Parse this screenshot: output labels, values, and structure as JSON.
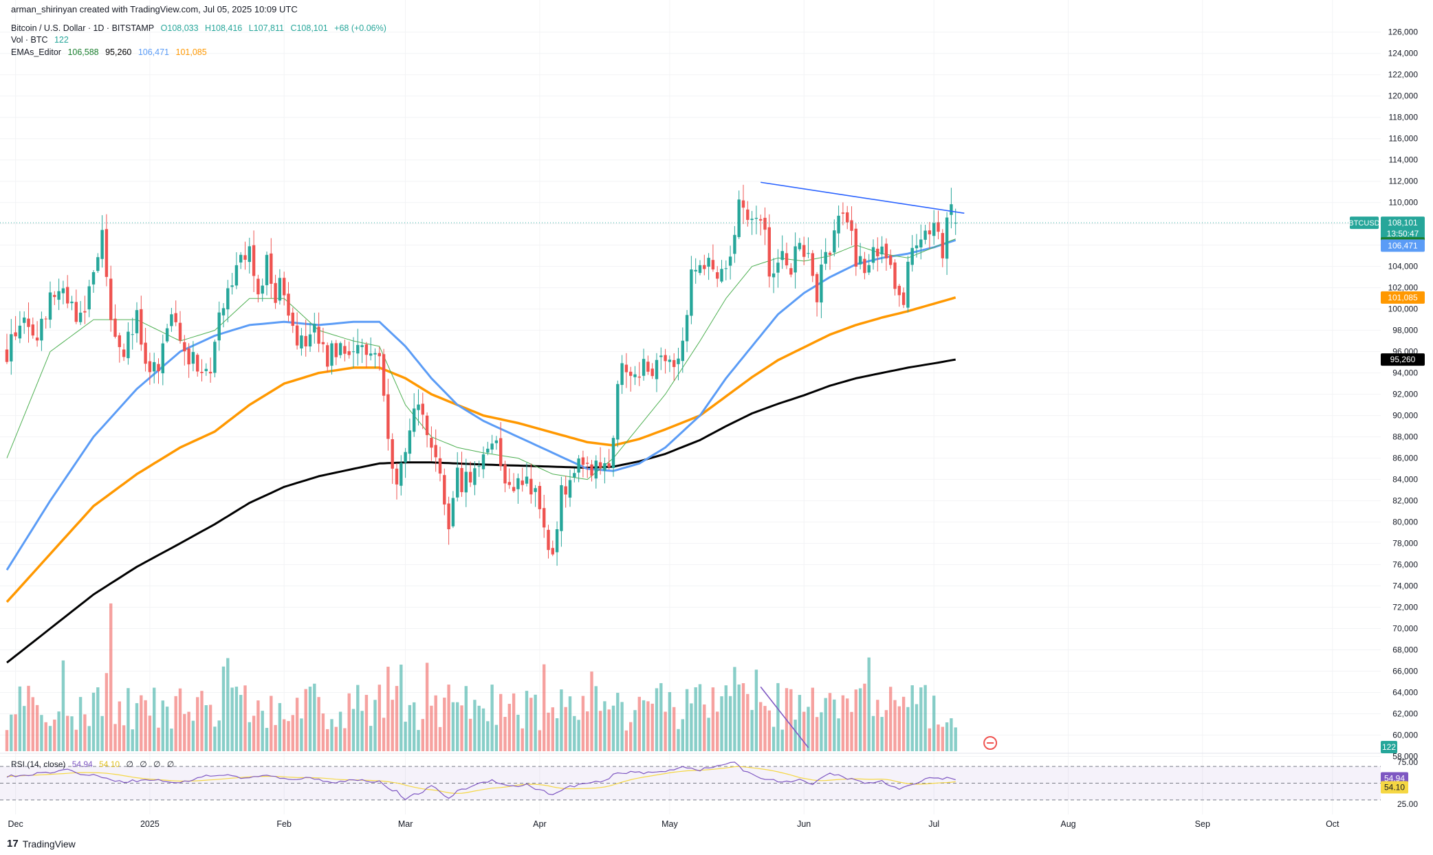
{
  "header": {
    "author_line": "arman_shirinyan created with TradingView.com, Jul 05, 2025 10:09 UTC",
    "symbol_name": "Bitcoin / U.S. Dollar · 1D · BITSTAMP",
    "ohlc": {
      "open": "O108,033",
      "high": "H108,416",
      "low": "L107,811",
      "close": "C108,101",
      "change": "+68 (+0.06%)"
    },
    "vol_label": "Vol · BTC",
    "vol_value": "122",
    "ema_label": "EMAs_Editor",
    "ema_values": [
      "106,588",
      "95,260",
      "106,471",
      "101,085"
    ]
  },
  "rsi_legend": {
    "label": "RSI (14, close)",
    "value": "54.94",
    "ma_value": "54.10",
    "extras": [
      "∅",
      "∅",
      "∅",
      "∅"
    ]
  },
  "brand": {
    "name": "TradingView",
    "logo_glyph": "17"
  },
  "colors": {
    "up": "#26a69a",
    "down": "#ef5350",
    "ema20": "#4caf50",
    "ema50": "#5b9cf6",
    "ema100": "#ff9800",
    "ema200": "#000000",
    "trendline": "#2962ff",
    "rsi": "#7e57c2",
    "rsi_ma": "#f5d743",
    "price_tag": "#26a69a"
  },
  "chart_data": {
    "type": "candlestick",
    "symbol": "BTCUSD",
    "interval": "1D",
    "ylim": [
      59000,
      126500
    ],
    "y_ticks": [
      "126,000",
      "124,000",
      "122,000",
      "120,000",
      "118,000",
      "116,000",
      "114,000",
      "112,000",
      "110,000",
      "108,000",
      "106,000",
      "104,000",
      "102,000",
      "100,000",
      "98,000",
      "96,000",
      "94,000",
      "92,000",
      "90,000",
      "88,000",
      "86,000",
      "84,000",
      "82,000",
      "80,000",
      "78,000",
      "76,000",
      "74,000",
      "72,000",
      "70,000",
      "68,000",
      "66,000",
      "64,000",
      "62,000",
      "60,000",
      "58,000"
    ],
    "x_ticks": [
      {
        "label": "Dec",
        "day": 2
      },
      {
        "label": "2025",
        "day": 33
      },
      {
        "label": "Feb",
        "day": 64
      },
      {
        "label": "Mar",
        "day": 92
      },
      {
        "label": "Apr",
        "day": 123
      },
      {
        "label": "May",
        "day": 153
      },
      {
        "label": "Jun",
        "day": 184
      },
      {
        "label": "Jul",
        "day": 214
      },
      {
        "label": "Aug",
        "day": 245
      },
      {
        "label": "Sep",
        "day": 276
      },
      {
        "label": "Oct",
        "day": 306
      }
    ],
    "price_tags": [
      {
        "label": "BTCUSD",
        "value": "108,101",
        "sub": "13:50:47",
        "price": 108101,
        "color": "#26a69a"
      },
      {
        "value": "106,588",
        "price": 106588,
        "color": "#1b7f2e"
      },
      {
        "value": "106,471",
        "price": 106471,
        "color": "#5b9cf6"
      },
      {
        "value": "101,085",
        "price": 101085,
        "color": "#ff9800"
      },
      {
        "value": "95,260",
        "price": 95260,
        "color": "#000000"
      }
    ],
    "volume_tag": "122",
    "anchors": [
      [
        0,
        96000
      ],
      [
        3,
        99000
      ],
      [
        6,
        96500
      ],
      [
        9,
        100000
      ],
      [
        12,
        101500
      ],
      [
        15,
        100000
      ],
      [
        18,
        99000
      ],
      [
        20,
        104000
      ],
      [
        22,
        106500
      ],
      [
        24,
        98000
      ],
      [
        27,
        96500
      ],
      [
        30,
        99000
      ],
      [
        32,
        94000
      ],
      [
        35,
        94000
      ],
      [
        38,
        99500
      ],
      [
        41,
        97000
      ],
      [
        44,
        93800
      ],
      [
        47,
        95000
      ],
      [
        50,
        101000
      ],
      [
        53,
        104500
      ],
      [
        56,
        105000
      ],
      [
        58,
        101000
      ],
      [
        60,
        104000
      ],
      [
        62,
        101500
      ],
      [
        64,
        102000
      ],
      [
        66,
        99000
      ],
      [
        68,
        96500
      ],
      [
        71,
        97500
      ],
      [
        74,
        95000
      ],
      [
        77,
        97000
      ],
      [
        80,
        96500
      ],
      [
        84,
        96000
      ],
      [
        86,
        96000
      ],
      [
        87,
        91500
      ],
      [
        88,
        89000
      ],
      [
        89,
        86000
      ],
      [
        90,
        84500
      ],
      [
        92,
        85500
      ],
      [
        95,
        92000
      ],
      [
        97,
        87000
      ],
      [
        100,
        84000
      ],
      [
        102,
        80000
      ],
      [
        104,
        84000
      ],
      [
        107,
        84000
      ],
      [
        110,
        87000
      ],
      [
        113,
        87500
      ],
      [
        116,
        83000
      ],
      [
        119,
        84000
      ],
      [
        122,
        83500
      ],
      [
        124,
        78500
      ],
      [
        126,
        76500
      ],
      [
        128,
        82500
      ],
      [
        131,
        85000
      ],
      [
        134,
        84500
      ],
      [
        137,
        85000
      ],
      [
        140,
        87000
      ],
      [
        141,
        93000
      ],
      [
        143,
        94500
      ],
      [
        146,
        94500
      ],
      [
        149,
        94500
      ],
      [
        151,
        96500
      ],
      [
        153,
        95000
      ],
      [
        156,
        97000
      ],
      [
        158,
        103500
      ],
      [
        161,
        104500
      ],
      [
        163,
        104000
      ],
      [
        165,
        103500
      ],
      [
        167,
        104000
      ],
      [
        168,
        106500
      ],
      [
        169,
        110500
      ],
      [
        172,
        109000
      ],
      [
        174,
        107500
      ],
      [
        175,
        106500
      ],
      [
        176,
        104000
      ],
      [
        178,
        105000
      ],
      [
        181,
        103800
      ],
      [
        182,
        105800
      ],
      [
        184,
        105500
      ],
      [
        186,
        103500
      ],
      [
        187,
        101500
      ],
      [
        188,
        104500
      ],
      [
        190,
        105500
      ],
      [
        192,
        109000
      ],
      [
        194,
        108000
      ],
      [
        196,
        105000
      ],
      [
        198,
        104000
      ],
      [
        200,
        104800
      ],
      [
        202,
        105000
      ],
      [
        204,
        104000
      ],
      [
        206,
        100500
      ],
      [
        207,
        101000
      ],
      [
        208,
        105500
      ],
      [
        210,
        106500
      ],
      [
        212,
        107000
      ],
      [
        214,
        107300
      ],
      [
        216,
        105800
      ],
      [
        217,
        108800
      ],
      [
        218,
        109000
      ],
      [
        219,
        108101
      ]
    ],
    "ema20": [
      [
        0,
        86000
      ],
      [
        10,
        96000
      ],
      [
        20,
        99000
      ],
      [
        30,
        99000
      ],
      [
        40,
        97000
      ],
      [
        48,
        98000
      ],
      [
        56,
        101000
      ],
      [
        64,
        101000
      ],
      [
        72,
        98000
      ],
      [
        80,
        97000
      ],
      [
        86,
        96500
      ],
      [
        92,
        91000
      ],
      [
        98,
        88000
      ],
      [
        104,
        87000
      ],
      [
        110,
        86500
      ],
      [
        118,
        86000
      ],
      [
        126,
        84500
      ],
      [
        134,
        84000
      ],
      [
        140,
        86000
      ],
      [
        146,
        89000
      ],
      [
        152,
        92000
      ],
      [
        160,
        97000
      ],
      [
        166,
        101000
      ],
      [
        172,
        104000
      ],
      [
        178,
        104800
      ],
      [
        184,
        104500
      ],
      [
        190,
        105000
      ],
      [
        196,
        106000
      ],
      [
        202,
        105200
      ],
      [
        208,
        104800
      ],
      [
        214,
        105800
      ],
      [
        219,
        106588
      ]
    ],
    "ema50": [
      [
        0,
        75500
      ],
      [
        10,
        82000
      ],
      [
        20,
        88000
      ],
      [
        30,
        92500
      ],
      [
        40,
        96000
      ],
      [
        48,
        97500
      ],
      [
        56,
        98500
      ],
      [
        64,
        98800
      ],
      [
        72,
        98500
      ],
      [
        80,
        98800
      ],
      [
        86,
        98800
      ],
      [
        92,
        96500
      ],
      [
        98,
        93500
      ],
      [
        104,
        91000
      ],
      [
        110,
        89500
      ],
      [
        118,
        88000
      ],
      [
        126,
        86500
      ],
      [
        134,
        85000
      ],
      [
        140,
        84800
      ],
      [
        146,
        85500
      ],
      [
        152,
        87000
      ],
      [
        160,
        90000
      ],
      [
        166,
        93500
      ],
      [
        172,
        96500
      ],
      [
        178,
        99500
      ],
      [
        184,
        101500
      ],
      [
        190,
        103000
      ],
      [
        196,
        104200
      ],
      [
        202,
        104800
      ],
      [
        208,
        105200
      ],
      [
        214,
        105800
      ],
      [
        219,
        106471
      ]
    ],
    "ema100": [
      [
        0,
        72500
      ],
      [
        10,
        77000
      ],
      [
        20,
        81500
      ],
      [
        30,
        84500
      ],
      [
        40,
        87000
      ],
      [
        48,
        88500
      ],
      [
        56,
        91000
      ],
      [
        64,
        93000
      ],
      [
        72,
        94000
      ],
      [
        80,
        94500
      ],
      [
        86,
        94500
      ],
      [
        92,
        93500
      ],
      [
        98,
        92000
      ],
      [
        104,
        91000
      ],
      [
        110,
        90000
      ],
      [
        118,
        89300
      ],
      [
        126,
        88400
      ],
      [
        134,
        87500
      ],
      [
        140,
        87200
      ],
      [
        146,
        87800
      ],
      [
        152,
        88700
      ],
      [
        160,
        90000
      ],
      [
        166,
        91800
      ],
      [
        172,
        93600
      ],
      [
        178,
        95200
      ],
      [
        184,
        96400
      ],
      [
        190,
        97600
      ],
      [
        196,
        98500
      ],
      [
        202,
        99200
      ],
      [
        208,
        99800
      ],
      [
        214,
        100500
      ],
      [
        219,
        101085
      ]
    ],
    "ema200": [
      [
        0,
        66800
      ],
      [
        10,
        70000
      ],
      [
        20,
        73200
      ],
      [
        30,
        75800
      ],
      [
        40,
        78000
      ],
      [
        48,
        79800
      ],
      [
        56,
        81800
      ],
      [
        64,
        83300
      ],
      [
        72,
        84300
      ],
      [
        80,
        85000
      ],
      [
        86,
        85500
      ],
      [
        92,
        85600
      ],
      [
        98,
        85600
      ],
      [
        104,
        85500
      ],
      [
        110,
        85400
      ],
      [
        118,
        85300
      ],
      [
        126,
        85200
      ],
      [
        134,
        85100
      ],
      [
        140,
        85200
      ],
      [
        146,
        85700
      ],
      [
        152,
        86400
      ],
      [
        160,
        87700
      ],
      [
        166,
        89000
      ],
      [
        172,
        90200
      ],
      [
        178,
        91100
      ],
      [
        184,
        91900
      ],
      [
        190,
        92800
      ],
      [
        196,
        93500
      ],
      [
        202,
        94000
      ],
      [
        208,
        94500
      ],
      [
        214,
        94900
      ],
      [
        219,
        95260
      ]
    ],
    "trendline": [
      [
        174,
        111900
      ],
      [
        221,
        109000
      ]
    ],
    "volume_divergence": [
      [
        174,
        0.36
      ],
      [
        185,
        0.02
      ]
    ],
    "rsi": {
      "ylim": [
        25,
        75
      ],
      "ticks": [
        "75.00",
        "25.00"
      ],
      "bands": [
        70,
        50,
        30
      ],
      "last": 54.94,
      "ma_last": 54.1,
      "anchors": [
        [
          0,
          58
        ],
        [
          8,
          62
        ],
        [
          14,
          66
        ],
        [
          18,
          60
        ],
        [
          22,
          58
        ],
        [
          26,
          52
        ],
        [
          30,
          53
        ],
        [
          34,
          54
        ],
        [
          40,
          50
        ],
        [
          45,
          58
        ],
        [
          50,
          60
        ],
        [
          55,
          56
        ],
        [
          60,
          59
        ],
        [
          64,
          55
        ],
        [
          70,
          56
        ],
        [
          76,
          51
        ],
        [
          80,
          54
        ],
        [
          86,
          52
        ],
        [
          88,
          44
        ],
        [
          90,
          40
        ],
        [
          92,
          30
        ],
        [
          94,
          36
        ],
        [
          96,
          40
        ],
        [
          98,
          46
        ],
        [
          100,
          40
        ],
        [
          102,
          32
        ],
        [
          104,
          40
        ],
        [
          108,
          48
        ],
        [
          112,
          54
        ],
        [
          116,
          46
        ],
        [
          120,
          48
        ],
        [
          124,
          40
        ],
        [
          126,
          36
        ],
        [
          130,
          46
        ],
        [
          134,
          50
        ],
        [
          138,
          52
        ],
        [
          140,
          60
        ],
        [
          144,
          64
        ],
        [
          148,
          62
        ],
        [
          152,
          64
        ],
        [
          156,
          70
        ],
        [
          160,
          66
        ],
        [
          164,
          70
        ],
        [
          168,
          76
        ],
        [
          170,
          64
        ],
        [
          172,
          60
        ],
        [
          176,
          54
        ],
        [
          180,
          52
        ],
        [
          184,
          54
        ],
        [
          186,
          48
        ],
        [
          190,
          62
        ],
        [
          194,
          56
        ],
        [
          198,
          50
        ],
        [
          202,
          52
        ],
        [
          206,
          42
        ],
        [
          208,
          46
        ],
        [
          212,
          56
        ],
        [
          216,
          56
        ],
        [
          219,
          54.94
        ]
      ]
    }
  }
}
